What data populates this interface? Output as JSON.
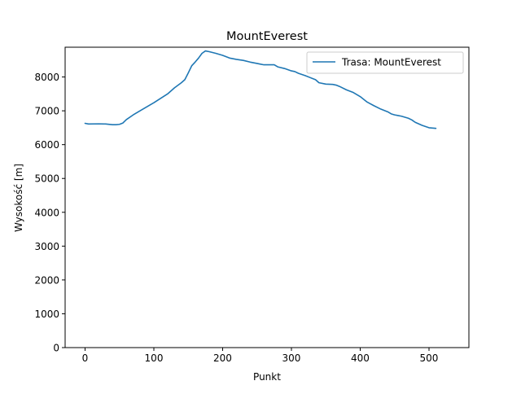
{
  "chart_data": {
    "type": "line",
    "title": "MountEverest",
    "xlabel": "Punkt",
    "ylabel": "Wysokość [m]",
    "xlim": [
      -29,
      558
    ],
    "ylim": [
      0,
      8880
    ],
    "xticks": [
      0,
      100,
      200,
      300,
      400,
      500
    ],
    "yticks": [
      0,
      1000,
      2000,
      3000,
      4000,
      5000,
      6000,
      7000,
      8000
    ],
    "grid": false,
    "legend_position": "upper right",
    "series": [
      {
        "name": "Trasa: MountEverest",
        "color": "#1f77b4",
        "x": [
          0,
          5,
          20,
          30,
          40,
          45,
          50,
          55,
          60,
          70,
          80,
          100,
          120,
          130,
          140,
          145,
          150,
          155,
          160,
          165,
          170,
          175,
          180,
          190,
          200,
          210,
          220,
          230,
          240,
          250,
          255,
          260,
          270,
          275,
          280,
          290,
          300,
          305,
          310,
          320,
          330,
          335,
          340,
          350,
          360,
          365,
          370,
          380,
          390,
          400,
          410,
          420,
          430,
          440,
          445,
          450,
          455,
          460,
          470,
          475,
          480,
          490,
          500,
          510
        ],
        "y": [
          6630,
          6610,
          6615,
          6610,
          6590,
          6590,
          6600,
          6640,
          6740,
          6880,
          7000,
          7240,
          7500,
          7680,
          7830,
          7920,
          8120,
          8330,
          8440,
          8560,
          8700,
          8770,
          8750,
          8700,
          8640,
          8560,
          8520,
          8490,
          8440,
          8400,
          8380,
          8360,
          8360,
          8360,
          8300,
          8250,
          8180,
          8160,
          8110,
          8040,
          7960,
          7920,
          7830,
          7790,
          7780,
          7760,
          7720,
          7620,
          7540,
          7420,
          7260,
          7150,
          7050,
          6970,
          6910,
          6880,
          6860,
          6840,
          6780,
          6730,
          6660,
          6570,
          6500,
          6480
        ]
      }
    ]
  }
}
